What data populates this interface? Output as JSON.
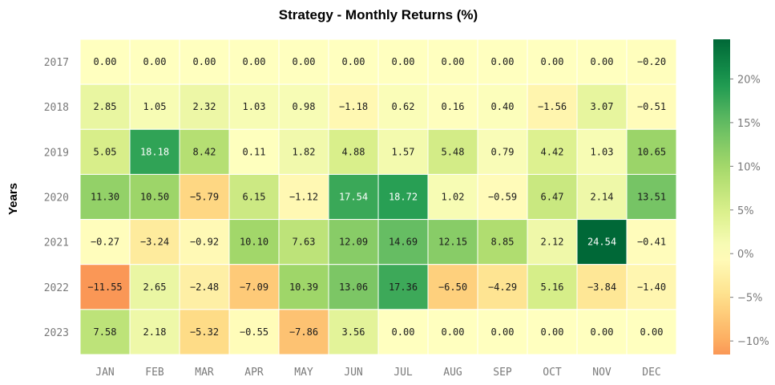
{
  "chart_data": {
    "type": "heatmap",
    "title": "Strategy - Monthly Returns (%)",
    "xlabel": "",
    "ylabel": "Years",
    "x_labels": [
      "JAN",
      "FEB",
      "MAR",
      "APR",
      "MAY",
      "JUN",
      "JUL",
      "AUG",
      "SEP",
      "OCT",
      "NOV",
      "DEC"
    ],
    "y_labels": [
      "2017",
      "2018",
      "2019",
      "2020",
      "2021",
      "2022",
      "2023"
    ],
    "values": [
      [
        0.0,
        0.0,
        0.0,
        0.0,
        0.0,
        0.0,
        0.0,
        0.0,
        0.0,
        0.0,
        0.0,
        -0.2
      ],
      [
        2.85,
        1.05,
        2.32,
        1.03,
        0.98,
        -1.18,
        0.62,
        0.16,
        0.4,
        -1.56,
        3.07,
        -0.51
      ],
      [
        5.05,
        18.18,
        8.42,
        0.11,
        1.82,
        4.88,
        1.57,
        5.48,
        0.79,
        4.42,
        1.03,
        10.65
      ],
      [
        11.3,
        10.5,
        -5.79,
        6.15,
        -1.12,
        17.54,
        18.72,
        1.02,
        -0.59,
        6.47,
        2.14,
        13.51
      ],
      [
        -0.27,
        -3.24,
        -0.92,
        10.1,
        7.63,
        12.09,
        14.69,
        12.15,
        8.85,
        2.12,
        24.54,
        -0.41
      ],
      [
        -11.55,
        2.65,
        -2.48,
        -7.09,
        10.39,
        13.06,
        17.36,
        -6.5,
        -4.29,
        5.16,
        -3.84,
        -1.4
      ],
      [
        7.58,
        2.18,
        -5.32,
        -0.55,
        -7.86,
        3.56,
        0.0,
        0.0,
        0.0,
        0.0,
        0.0,
        0.0
      ]
    ],
    "colorbar": {
      "min": -11.55,
      "max": 24.54,
      "center": 0,
      "ticks": [
        -10,
        -5,
        0,
        5,
        10,
        15,
        20
      ],
      "tick_labels": [
        "−10%",
        "−5%",
        "0%",
        "5%",
        "10%",
        "15%",
        "20%"
      ],
      "colormap": "RdYlGn"
    }
  }
}
